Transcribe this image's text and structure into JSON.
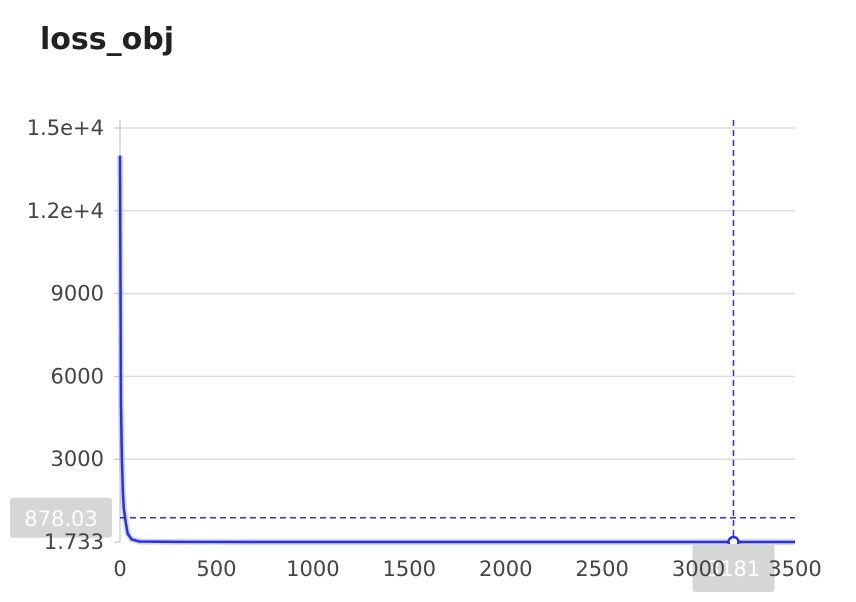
{
  "title": "loss_obj",
  "chart_data": {
    "type": "line",
    "title": "loss_obj",
    "xlabel": "",
    "ylabel": "",
    "xlim": [
      0,
      3500
    ],
    "ylim": [
      1.733,
      15000
    ],
    "grid": true,
    "x_ticks": [
      "0",
      "500",
      "1000",
      "1500",
      "2000",
      "2500",
      "3000",
      "3500"
    ],
    "y_ticks": [
      "1.733",
      "3000",
      "6000",
      "9000",
      "1.2e+4",
      "1.5e+4"
    ],
    "series": [
      {
        "color": "#2431e6",
        "x": [
          0,
          5,
          10,
          15,
          20,
          30,
          40,
          60,
          100,
          300,
          1000,
          2000,
          3000,
          3181,
          3500
        ],
        "y": [
          14000,
          5000,
          3000,
          1800,
          1200,
          700,
          300,
          100,
          20,
          5,
          3,
          2.5,
          2,
          2,
          2
        ]
      }
    ],
    "hover": {
      "x": 3181,
      "y_label": "878.03",
      "y": 878.03,
      "x_label": "3181"
    }
  }
}
